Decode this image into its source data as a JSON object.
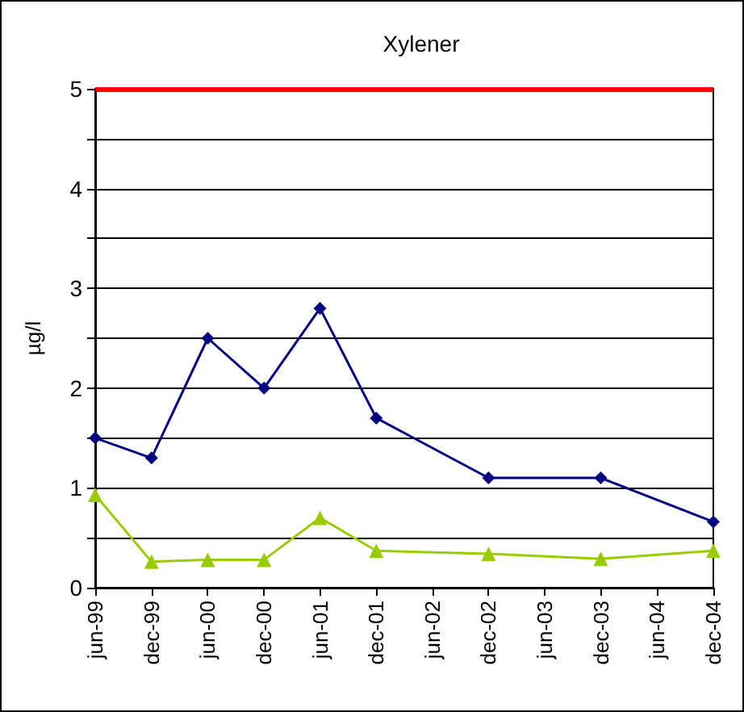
{
  "chart_data": {
    "type": "line",
    "title": "Xylener",
    "ylabel": "µg/l",
    "x": [
      "1999-06",
      "1999-12",
      "2000-06",
      "2000-12",
      "2001-06",
      "2001-12",
      "2002-12",
      "2003-12",
      "2004-12"
    ],
    "series": [
      {
        "color": "#000080",
        "marker": "diamond",
        "values": [
          1.5,
          1.3,
          2.5,
          2.0,
          2.8,
          1.7,
          1.1,
          1.1,
          0.66
        ]
      },
      {
        "color": "#99cc00",
        "marker": "triangle",
        "values": [
          0.93,
          0.26,
          0.28,
          0.28,
          0.7,
          0.37,
          0.34,
          0.29,
          0.37
        ]
      }
    ],
    "xlim": [
      "1999-06",
      "2004-12"
    ],
    "xticks": [
      {
        "value": "1999-06",
        "label": "jun-99"
      },
      {
        "value": "1999-12",
        "label": "dec-99"
      },
      {
        "value": "2000-06",
        "label": "jun-00"
      },
      {
        "value": "2000-12",
        "label": "dec-00"
      },
      {
        "value": "2001-06",
        "label": "jun-01"
      },
      {
        "value": "2001-12",
        "label": "dec-01"
      },
      {
        "value": "2002-06",
        "label": "jun-02"
      },
      {
        "value": "2002-12",
        "label": "dec-02"
      },
      {
        "value": "2003-06",
        "label": "jun-03"
      },
      {
        "value": "2003-12",
        "label": "dec-03"
      },
      {
        "value": "2004-06",
        "label": "jun-04"
      },
      {
        "value": "2004-12",
        "label": "dec-04"
      }
    ],
    "ylim": [
      0,
      5
    ],
    "yticks": [
      0,
      {
        "value": 0.5,
        "label": null
      },
      1,
      {
        "value": 1.5,
        "label": null
      },
      2,
      {
        "value": 2.5,
        "label": null
      },
      3,
      {
        "value": 3.5,
        "label": null
      },
      4,
      {
        "value": 4.5,
        "label": null
      },
      5
    ],
    "grid": "y",
    "line_style": "solid",
    "ref_lines": [
      {
        "axis": "y",
        "value": 5,
        "color": "#ff0000"
      }
    ]
  }
}
